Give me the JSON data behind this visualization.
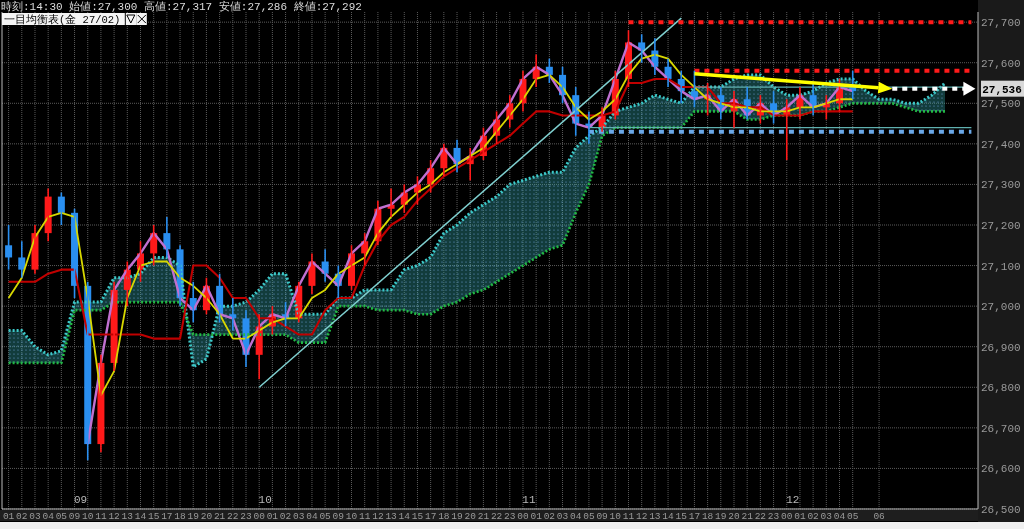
{
  "chart_data": {
    "type": "candlestick",
    "title": "時刻:14:30 始値:27,300 高値:27,317 安値:27,286 終値:27,292",
    "subtitle": "一目均衡表(金 27/02)",
    "categories": [
      "01",
      "02",
      "03",
      "04",
      "05",
      "09",
      "10",
      "11",
      "12",
      "13",
      "14",
      "15",
      "17",
      "18",
      "19",
      "20",
      "21",
      "22",
      "23",
      "00",
      "01",
      "02",
      "03",
      "04",
      "05",
      "09",
      "10",
      "11",
      "12",
      "13",
      "14",
      "15",
      "17",
      "18",
      "19",
      "20",
      "21",
      "22",
      "23",
      "00",
      "01",
      "02",
      "03",
      "04",
      "05",
      "09",
      "10",
      "11",
      "12",
      "13",
      "14",
      "15",
      "17",
      "18",
      "19",
      "20",
      "21",
      "22",
      "23",
      "00",
      "01",
      "02",
      "03",
      "04",
      "05",
      null,
      "06",
      null,
      null,
      null,
      null,
      null,
      null,
      null
    ],
    "ohlc": [
      [
        27150,
        27200,
        27090,
        27120
      ],
      [
        27120,
        27160,
        27070,
        27090
      ],
      [
        27090,
        27200,
        27080,
        27180
      ],
      [
        27180,
        27290,
        27160,
        27270
      ],
      [
        27270,
        27280,
        27200,
        27230
      ],
      [
        27230,
        27240,
        27020,
        27050
      ],
      [
        27050,
        27060,
        26620,
        26660
      ],
      [
        26660,
        26880,
        26640,
        26860
      ],
      [
        26860,
        27060,
        26840,
        27040
      ],
      [
        27040,
        27110,
        27000,
        27090
      ],
      [
        27090,
        27160,
        27060,
        27130
      ],
      [
        27130,
        27200,
        27100,
        27180
      ],
      [
        27180,
        27220,
        27120,
        27140
      ],
      [
        27140,
        27150,
        27000,
        27020
      ],
      [
        27020,
        27060,
        26960,
        26990
      ],
      [
        26990,
        27070,
        26980,
        27050
      ],
      [
        27050,
        27080,
        26960,
        26980
      ],
      [
        26980,
        27020,
        26940,
        26970
      ],
      [
        26970,
        26990,
        26850,
        26880
      ],
      [
        26880,
        26980,
        26820,
        26950
      ],
      [
        26950,
        27000,
        26930,
        26980
      ],
      [
        26980,
        27010,
        26950,
        26970
      ],
      [
        26970,
        27060,
        26960,
        27050
      ],
      [
        27050,
        27130,
        27030,
        27110
      ],
      [
        27110,
        27140,
        27060,
        27080
      ],
      [
        27080,
        27100,
        27020,
        27050
      ],
      [
        27050,
        27150,
        27040,
        27130
      ],
      [
        27130,
        27180,
        27100,
        27160
      ],
      [
        27160,
        27260,
        27150,
        27240
      ],
      [
        27240,
        27290,
        27220,
        27250
      ],
      [
        27250,
        27300,
        27230,
        27280
      ],
      [
        27280,
        27320,
        27250,
        27300
      ],
      [
        27300,
        27360,
        27280,
        27340
      ],
      [
        27340,
        27400,
        27320,
        27390
      ],
      [
        27390,
        27410,
        27330,
        27350
      ],
      [
        27350,
        27390,
        27310,
        27370
      ],
      [
        27370,
        27440,
        27360,
        27420
      ],
      [
        27420,
        27480,
        27400,
        27460
      ],
      [
        27460,
        27520,
        27440,
        27500
      ],
      [
        27500,
        27580,
        27480,
        27560
      ],
      [
        27560,
        27620,
        27540,
        27590
      ],
      [
        27590,
        27610,
        27550,
        27570
      ],
      [
        27570,
        27590,
        27500,
        27520
      ],
      [
        27520,
        27540,
        27420,
        27450
      ],
      [
        27450,
        27480,
        27400,
        27440
      ],
      [
        27440,
        27490,
        27430,
        27470
      ],
      [
        27470,
        27580,
        27460,
        27560
      ],
      [
        27560,
        27680,
        27540,
        27650
      ],
      [
        27650,
        27670,
        27600,
        27630
      ],
      [
        27630,
        27660,
        27570,
        27590
      ],
      [
        27590,
        27610,
        27540,
        27560
      ],
      [
        27560,
        27580,
        27500,
        27530
      ],
      [
        27530,
        27580,
        27490,
        27510
      ],
      [
        27510,
        27550,
        27470,
        27520
      ],
      [
        27520,
        27540,
        27460,
        27480
      ],
      [
        27480,
        27530,
        27440,
        27510
      ],
      [
        27510,
        27540,
        27460,
        27470
      ],
      [
        27470,
        27520,
        27450,
        27500
      ],
      [
        27500,
        27530,
        27450,
        27470
      ],
      [
        27470,
        27510,
        27360,
        27490
      ],
      [
        27490,
        27540,
        27460,
        27520
      ],
      [
        27520,
        27550,
        27470,
        27490
      ],
      [
        27490,
        27520,
        27460,
        27500
      ],
      [
        27500,
        27560,
        27480,
        27540
      ],
      [
        27540,
        27580,
        27510,
        27530
      ],
      null,
      null,
      null,
      null,
      null,
      null,
      null,
      null,
      null
    ],
    "colors": [
      "#2a8ff0",
      "#2a8ff0",
      "#ff1a1a",
      "#ff1a1a",
      "#2a8ff0",
      "#2a8ff0",
      "#2a8ff0",
      "#ff1a1a",
      "#ff1a1a",
      "#ff1a1a",
      "#ff1a1a",
      "#ff1a1a",
      "#2a8ff0",
      "#2a8ff0",
      "#2a8ff0",
      "#ff1a1a",
      "#2a8ff0",
      "#2a8ff0",
      "#2a8ff0",
      "#ff1a1a",
      "#ff1a1a",
      "#2a8ff0",
      "#ff1a1a",
      "#ff1a1a",
      "#2a8ff0",
      "#2a8ff0",
      "#ff1a1a",
      "#ff1a1a",
      "#ff1a1a",
      "#ff1a1a",
      "#ff1a1a",
      "#ff1a1a",
      "#ff1a1a",
      "#ff1a1a",
      "#2a8ff0",
      "#ff1a1a",
      "#ff1a1a",
      "#ff1a1a",
      "#ff1a1a",
      "#ff1a1a",
      "#ff1a1a",
      "#2a8ff0",
      "#2a8ff0",
      "#2a8ff0",
      "#2a8ff0",
      "#ff1a1a",
      "#ff1a1a",
      "#ff1a1a",
      "#2a8ff0",
      "#2a8ff0",
      "#2a8ff0",
      "#2a8ff0",
      "#2a8ff0",
      "#ff1a1a",
      "#2a8ff0",
      "#ff1a1a",
      "#2a8ff0",
      "#ff1a1a",
      "#2a8ff0",
      "#ff1a1a",
      "#ff1a1a",
      "#2a8ff0",
      "#ff1a1a",
      "#ff1a1a",
      "#2a8ff0",
      null,
      null,
      null,
      null,
      null,
      null,
      null,
      null,
      null
    ],
    "series": [
      {
        "type": "line",
        "color": "#3cc8c8",
        "line_style": "dotted",
        "upper": [
          26940,
          26940,
          26900,
          26880,
          26890,
          27010,
          27010,
          27010,
          27070,
          27070,
          27080,
          27120,
          27120,
          27100,
          26850,
          26870,
          27000,
          27000,
          27010,
          27040,
          27080,
          27080,
          26980,
          26980,
          26980,
          27020,
          27020,
          27040,
          27040,
          27040,
          27090,
          27100,
          27120,
          27180,
          27200,
          27230,
          27250,
          27270,
          27300,
          27310,
          27320,
          27330,
          27330,
          27390,
          27420,
          27440,
          27480,
          27490,
          27500,
          27520,
          27510,
          27500,
          27540,
          27540,
          27540,
          27560,
          27570,
          27570,
          27540,
          27520,
          27520,
          27530,
          27550,
          27560,
          27560,
          27530,
          27510,
          27510,
          27500,
          27500,
          27520,
          27550,
          null,
          null
        ],
        "lower": [
          26860,
          26860,
          26860,
          26860,
          26860,
          26990,
          26990,
          26990,
          27010,
          27010,
          27010,
          27010,
          27010,
          27010,
          26930,
          26930,
          26930,
          26930,
          26930,
          26930,
          26930,
          26930,
          26910,
          26910,
          26910,
          27000,
          27000,
          27000,
          26990,
          26990,
          26990,
          26980,
          26980,
          27000,
          27010,
          27030,
          27040,
          27060,
          27080,
          27100,
          27120,
          27140,
          27150,
          27230,
          27300,
          27420,
          27440,
          27440,
          27440,
          27440,
          27440,
          27440,
          27480,
          27480,
          27480,
          27480,
          27460,
          27460,
          27470,
          27470,
          27470,
          27480,
          27480,
          27490,
          27500,
          27500,
          27500,
          27500,
          27490,
          27480,
          27480,
          27480,
          null,
          null
        ],
        "values": [
          26940,
          26940,
          26900,
          26880,
          26890,
          27010,
          27010,
          27010,
          27070,
          27070,
          27080,
          27120,
          27120,
          27100,
          26850,
          26870,
          27000,
          27000,
          27010,
          27040,
          27080,
          27080,
          26980,
          26980,
          26980,
          27020,
          27020,
          27040,
          27040,
          27040,
          27090,
          27100,
          27120,
          27180,
          27200,
          27230,
          27250,
          27270,
          27300,
          27310,
          27320,
          27330,
          27330,
          27390,
          27420,
          27440,
          27480,
          27490,
          27500,
          27520,
          27510,
          27500,
          27540,
          27540,
          27540,
          27560,
          27570,
          27570,
          27540,
          27520,
          27520,
          27530,
          27550,
          27560,
          27560,
          27530,
          27510,
          27510,
          27500,
          27500,
          27520,
          27550,
          null,
          null
        ]
      },
      {
        "type": "line",
        "color": "#22b844",
        "line_style": "dotted",
        "values": [
          26860,
          26860,
          26860,
          26860,
          26860,
          26990,
          26990,
          26990,
          27010,
          27010,
          27010,
          27010,
          27010,
          27010,
          26930,
          26930,
          26930,
          26930,
          26930,
          26930,
          26930,
          26930,
          26910,
          26910,
          26910,
          27000,
          27000,
          27000,
          26990,
          26990,
          26990,
          26980,
          26980,
          27000,
          27010,
          27030,
          27040,
          27060,
          27080,
          27100,
          27120,
          27140,
          27150,
          27230,
          27300,
          27420,
          27440,
          27440,
          27440,
          27440,
          27440,
          27440,
          27480,
          27480,
          27480,
          27480,
          27460,
          27460,
          27470,
          27470,
          27470,
          27480,
          27480,
          27490,
          27500,
          27500,
          27500,
          27500,
          27490,
          27480,
          27480,
          27480,
          null,
          null
        ]
      },
      {
        "type": "line",
        "color": "#c070d0",
        "line_style": "solid",
        "values": [
          null,
          null,
          null,
          null,
          null,
          null,
          26660,
          26860,
          27040,
          27090,
          27130,
          27180,
          27140,
          27020,
          26990,
          27050,
          26980,
          26970,
          26880,
          26950,
          26980,
          26970,
          27050,
          27110,
          27080,
          27050,
          27130,
          27160,
          27240,
          27250,
          27280,
          27300,
          27340,
          27390,
          27350,
          27370,
          27420,
          27460,
          27500,
          27560,
          27590,
          27570,
          27520,
          27450,
          27440,
          27470,
          27560,
          27650,
          27630,
          27590,
          27560,
          27530,
          27510,
          27520,
          27480,
          27510,
          27470,
          27500,
          27470,
          27490,
          27520,
          27490,
          27500,
          27540,
          27530,
          null,
          null,
          null,
          null,
          null,
          null,
          null,
          null,
          null
        ]
      },
      {
        "type": "line",
        "color": "#c00000",
        "line_style": "solid",
        "values": [
          27060,
          27060,
          27060,
          27080,
          27090,
          27090,
          26930,
          26930,
          26930,
          26930,
          26930,
          26920,
          26920,
          26920,
          27100,
          27100,
          27070,
          27020,
          27020,
          26970,
          26970,
          26950,
          26930,
          26930,
          26990,
          27020,
          27020,
          27100,
          27160,
          27200,
          27220,
          27260,
          27290,
          27320,
          27340,
          27360,
          27380,
          27400,
          27420,
          27450,
          27480,
          27480,
          27470,
          27470,
          27470,
          27470,
          27480,
          27550,
          27550,
          27560,
          27560,
          27540,
          27540,
          27540,
          27500,
          27500,
          27490,
          27490,
          27470,
          27470,
          27470,
          27480,
          27480,
          27480,
          27480,
          null,
          null,
          null,
          null,
          null,
          null,
          null,
          null,
          null
        ]
      },
      {
        "type": "line",
        "color": "#d8d800",
        "line_style": "solid",
        "values": [
          27020,
          27070,
          27170,
          27220,
          27230,
          27220,
          27020,
          26780,
          26840,
          27020,
          27100,
          27110,
          27110,
          27070,
          27050,
          27020,
          26980,
          26920,
          26920,
          26940,
          26960,
          26970,
          26970,
          27020,
          27040,
          27080,
          27100,
          27120,
          27180,
          27220,
          27250,
          27280,
          27300,
          27330,
          27350,
          27370,
          27390,
          27430,
          27470,
          27510,
          27560,
          27570,
          27540,
          27490,
          27460,
          27480,
          27510,
          27570,
          27610,
          27620,
          27610,
          27570,
          27540,
          27510,
          27500,
          27490,
          27490,
          27480,
          27480,
          27480,
          27490,
          27490,
          27500,
          27510,
          27510,
          null,
          null,
          null,
          null,
          null,
          null,
          null,
          null,
          null
        ]
      },
      {
        "type": "line",
        "color": "#7fd0d0",
        "line_style": "solid",
        "values": [
          null,
          null,
          null,
          null,
          null,
          null,
          null,
          null,
          null,
          null,
          null,
          null,
          null,
          null,
          null,
          null,
          null,
          null,
          null,
          26800,
          null,
          null,
          null,
          null,
          null,
          null,
          null,
          null,
          null,
          null,
          null,
          null,
          null,
          null,
          null,
          null,
          null,
          null,
          null,
          null,
          null,
          null,
          null,
          null,
          null,
          null,
          null,
          null,
          null,
          null,
          null,
          27710,
          null,
          null,
          null,
          null,
          null,
          null,
          null,
          null,
          null,
          null,
          null,
          null,
          null,
          null,
          null,
          null,
          null,
          null,
          null,
          null,
          null,
          null
        ]
      },
      {
        "type": "line",
        "color": "#5fb0b0",
        "line_style": "solid",
        "values": [
          null,
          null,
          null,
          null,
          null,
          null,
          null,
          null,
          null,
          null,
          null,
          null,
          null,
          null,
          null,
          null,
          null,
          null,
          null,
          null,
          null,
          null,
          null,
          null,
          null,
          null,
          null,
          null,
          null,
          null,
          null,
          null,
          null,
          null,
          null,
          null,
          null,
          null,
          null,
          null,
          null,
          null,
          null,
          null,
          27440,
          null,
          null,
          null,
          null,
          null,
          null,
          null,
          null,
          null,
          null,
          null,
          null,
          null,
          null,
          null,
          null,
          null,
          null,
          null,
          null,
          null,
          null,
          null,
          null,
          null,
          null,
          null,
          null,
          27440
        ]
      },
      {
        "type": "line",
        "color": "#5fb0b0",
        "line_style": "solid",
        "values": [
          null,
          null,
          null,
          null,
          null,
          null,
          null,
          null,
          null,
          null,
          null,
          null,
          null,
          null,
          null,
          null,
          null,
          null,
          null,
          null,
          null,
          null,
          null,
          null,
          null,
          null,
          null,
          null,
          null,
          null,
          null,
          null,
          null,
          null,
          null,
          null,
          null,
          null,
          null,
          null,
          null,
          null,
          null,
          null,
          null,
          null,
          null,
          null,
          null,
          null,
          null,
          null,
          27540,
          null,
          null,
          null,
          null,
          null,
          null,
          null,
          null,
          null,
          null,
          null,
          null,
          null,
          null,
          null,
          null,
          null,
          null,
          null,
          null,
          27540
        ]
      },
      {
        "type": "line",
        "color": "#ff1a1a",
        "line_style": "dashed",
        "values": [
          null,
          null,
          null,
          null,
          null,
          null,
          null,
          null,
          null,
          null,
          null,
          null,
          null,
          null,
          null,
          null,
          null,
          null,
          null,
          null,
          null,
          null,
          null,
          null,
          null,
          null,
          null,
          null,
          null,
          null,
          null,
          null,
          null,
          null,
          null,
          null,
          null,
          null,
          null,
          null,
          null,
          null,
          null,
          null,
          null,
          null,
          null,
          27700,
          null,
          null,
          null,
          null,
          null,
          null,
          null,
          null,
          null,
          null,
          null,
          null,
          null,
          null,
          null,
          null,
          null,
          null,
          null,
          null,
          null,
          null,
          null,
          null,
          null,
          27700
        ]
      },
      {
        "type": "line",
        "color": "#ff1a1a",
        "line_style": "dashed",
        "values": [
          null,
          null,
          null,
          null,
          null,
          null,
          null,
          null,
          null,
          null,
          null,
          null,
          null,
          null,
          null,
          null,
          null,
          null,
          null,
          null,
          null,
          null,
          null,
          null,
          null,
          null,
          null,
          null,
          null,
          null,
          null,
          null,
          null,
          null,
          null,
          null,
          null,
          null,
          null,
          null,
          null,
          null,
          null,
          null,
          null,
          null,
          null,
          null,
          null,
          null,
          null,
          null,
          27580,
          null,
          null,
          null,
          null,
          null,
          null,
          null,
          null,
          null,
          null,
          null,
          null,
          null,
          null,
          null,
          null,
          null,
          null,
          null,
          null,
          27580
        ]
      },
      {
        "type": "line",
        "color": "#6aa8e8",
        "line_style": "dashed",
        "values": [
          null,
          null,
          null,
          null,
          null,
          null,
          null,
          null,
          null,
          null,
          null,
          null,
          null,
          null,
          null,
          null,
          null,
          null,
          null,
          null,
          null,
          null,
          null,
          null,
          null,
          null,
          null,
          null,
          null,
          null,
          null,
          null,
          null,
          null,
          null,
          null,
          null,
          null,
          null,
          null,
          null,
          null,
          null,
          null,
          27430,
          null,
          null,
          null,
          null,
          null,
          null,
          null,
          null,
          null,
          null,
          null,
          null,
          null,
          null,
          null,
          null,
          null,
          null,
          null,
          null,
          null,
          null,
          null,
          null,
          null,
          null,
          null,
          null,
          27430
        ]
      },
      {
        "type": "line",
        "color": "#ffffff",
        "line_style": "dashed",
        "values": [
          null,
          null,
          null,
          null,
          null,
          null,
          null,
          null,
          null,
          null,
          null,
          null,
          null,
          null,
          null,
          null,
          null,
          null,
          null,
          null,
          null,
          null,
          null,
          null,
          null,
          null,
          null,
          null,
          null,
          null,
          null,
          null,
          null,
          null,
          null,
          null,
          null,
          null,
          null,
          null,
          null,
          null,
          null,
          null,
          null,
          null,
          null,
          null,
          null,
          null,
          null,
          null,
          null,
          null,
          null,
          null,
          null,
          null,
          null,
          null,
          null,
          null,
          null,
          null,
          null,
          null,
          null,
          27536,
          null,
          null,
          null,
          null,
          null,
          27536
        ]
      }
    ],
    "ylim": [
      26500,
      27725
    ],
    "yticks": [
      {
        "value": 26500,
        "label": "26,500"
      },
      {
        "value": 26600,
        "label": "26,600"
      },
      {
        "value": 26700,
        "label": "26,700"
      },
      {
        "value": 26800,
        "label": "26,800"
      },
      {
        "value": 26900,
        "label": "26,900"
      },
      {
        "value": 27000,
        "label": "27,000"
      },
      {
        "value": 27100,
        "label": "27,100"
      },
      {
        "value": 27200,
        "label": "27,200"
      },
      {
        "value": 27300,
        "label": "27,300"
      },
      {
        "value": 27400,
        "label": "27,400"
      },
      {
        "value": 27500,
        "label": "27,500"
      },
      {
        "value": 27600,
        "label": "27,600"
      },
      {
        "value": 27700,
        "label": "27,700"
      }
    ],
    "annotations": [
      "09",
      "10",
      "11",
      "12",
      {
        "text": "27,536",
        "y": 27536
      }
    ],
    "grid": true
  }
}
